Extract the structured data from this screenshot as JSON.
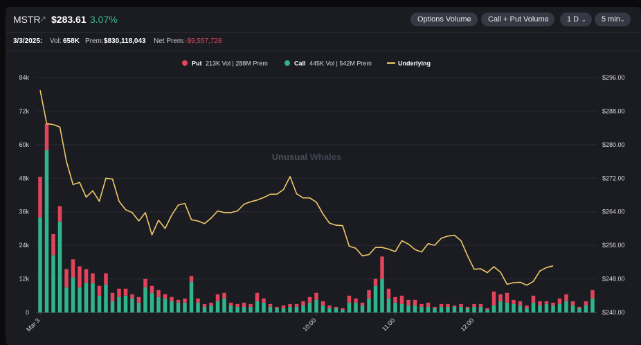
{
  "header": {
    "ticker": "MSTR",
    "arrow": "↗",
    "price": "$283.61",
    "change_pct": "3.07%",
    "dropdowns": [
      {
        "label": "Options Volume"
      },
      {
        "label": "Call + Put Volume"
      },
      {
        "label": "1 D"
      },
      {
        "label": "5 min"
      }
    ]
  },
  "stats": {
    "date": "3/3/2025:",
    "vol_label": "Vol:",
    "vol_value": "658K",
    "prem_label": "Prem:",
    "prem_value": "$830,118,043",
    "net_prem_label": "Net Prem:",
    "net_prem_value": "-$9,557,728"
  },
  "watermark": {
    "part1": "Unusual",
    "part2": "Whales"
  },
  "colors": {
    "put": "#e0455b",
    "call": "#2fb48b",
    "underlying": "#f0c96a"
  },
  "chart_data": {
    "type": "bar",
    "legend": [
      {
        "key": "put",
        "name": "Put",
        "detail": "213K Vol | 288M Prem"
      },
      {
        "key": "call",
        "name": "Call",
        "detail": "445K Vol | 542M Prem"
      },
      {
        "key": "underlying",
        "name": "Underlying",
        "detail": ""
      }
    ],
    "legend_position": "top-center",
    "x_tick_labels": [
      {
        "bar": 0,
        "label": "Mar 3"
      },
      {
        "bar": 42,
        "label": "10:00"
      },
      {
        "bar": 54,
        "label": "11:00"
      },
      {
        "bar": 66,
        "label": "12:00"
      }
    ],
    "y_left": {
      "min": 0,
      "max": 84000,
      "ticks": [
        0,
        12000,
        24000,
        36000,
        48000,
        60000,
        72000,
        84000
      ],
      "labels": [
        "0",
        "12k",
        "24k",
        "36k",
        "48k",
        "60k",
        "72k",
        "84k"
      ]
    },
    "y_right": {
      "min": 240,
      "max": 296,
      "ticks": [
        240,
        248,
        256,
        264,
        272,
        280,
        288,
        296
      ],
      "labels": [
        "$240.00",
        "$248.00",
        "$256.00",
        "$264.00",
        "$272.00",
        "$280.00",
        "$288.00",
        "$296.00"
      ]
    },
    "grid": "horizontal",
    "series": [
      {
        "name": "Call",
        "values": [
          34000,
          58000,
          20500,
          32500,
          9000,
          12500,
          9000,
          10500,
          10500,
          6000,
          10000,
          4000,
          5500,
          6000,
          5000,
          3500,
          9000,
          7000,
          5500,
          5000,
          4000,
          3500,
          3500,
          11000,
          3500,
          2000,
          2500,
          4000,
          5000,
          2500,
          2000,
          2000,
          2000,
          4000,
          3500,
          2000,
          1500,
          1500,
          2000,
          2000,
          2500,
          3500,
          4500,
          2500,
          1500,
          1500,
          1000,
          3500,
          3500,
          2500,
          5000,
          9500,
          12000,
          5000,
          3500,
          3000,
          2500,
          2500,
          2000,
          2000,
          1500,
          2000,
          2000,
          2000,
          2000,
          1500,
          2000,
          2000,
          1000,
          2500,
          4000,
          3500,
          3000,
          2500,
          1500,
          3500,
          2500,
          3000,
          2500,
          3000,
          4000,
          2500,
          1500,
          2500,
          5000
        ]
      },
      {
        "name": "Put",
        "values": [
          14500,
          9500,
          7500,
          5500,
          6500,
          6500,
          7500,
          5000,
          3500,
          3500,
          4000,
          3000,
          3000,
          2500,
          1500,
          2000,
          3000,
          2500,
          2500,
          1500,
          1500,
          1000,
          1500,
          2000,
          1500,
          1000,
          1000,
          2500,
          2000,
          1000,
          1000,
          1500,
          1000,
          3000,
          1500,
          1000,
          500,
          1000,
          1000,
          1000,
          1500,
          2000,
          2500,
          1500,
          1000,
          500,
          500,
          2500,
          1500,
          1000,
          3000,
          2500,
          8000,
          3500,
          2000,
          3000,
          2000,
          2000,
          1000,
          1500,
          500,
          1000,
          1000,
          500,
          1000,
          500,
          1000,
          1000,
          500,
          5000,
          2500,
          3500,
          1500,
          1500,
          1000,
          2500,
          1500,
          1000,
          1000,
          2000,
          2500,
          1500,
          500,
          1500,
          3000
        ]
      },
      {
        "name": "Underlying",
        "values": [
          293,
          285,
          284.8,
          284.2,
          276,
          270.5,
          271,
          267.5,
          269,
          266.5,
          272,
          271.8,
          266.5,
          264.5,
          263.8,
          261.8,
          263.8,
          258.5,
          262,
          260,
          263.2,
          265.6,
          266,
          262.1,
          261.8,
          261.2,
          262.5,
          264.2,
          263.8,
          263.8,
          264.2,
          265.8,
          266.4,
          266.8,
          267.4,
          268.2,
          268.2,
          269.3,
          272.4,
          268.3,
          267.3,
          267.3,
          266.3,
          263.5,
          261.3,
          260.8,
          260.7,
          255.8,
          255.3,
          253.5,
          253.8,
          255.5,
          255.5,
          255.1,
          254.5,
          257.1,
          256.3,
          255,
          254.4,
          256.4,
          256,
          257.7,
          258.2,
          258.4,
          257.1,
          253.5,
          250.3,
          250.4,
          249.5,
          250.9,
          249.6,
          246.7,
          247.1,
          247.2,
          246.5,
          247.4,
          249.9,
          250.7,
          251.1
        ]
      }
    ]
  }
}
